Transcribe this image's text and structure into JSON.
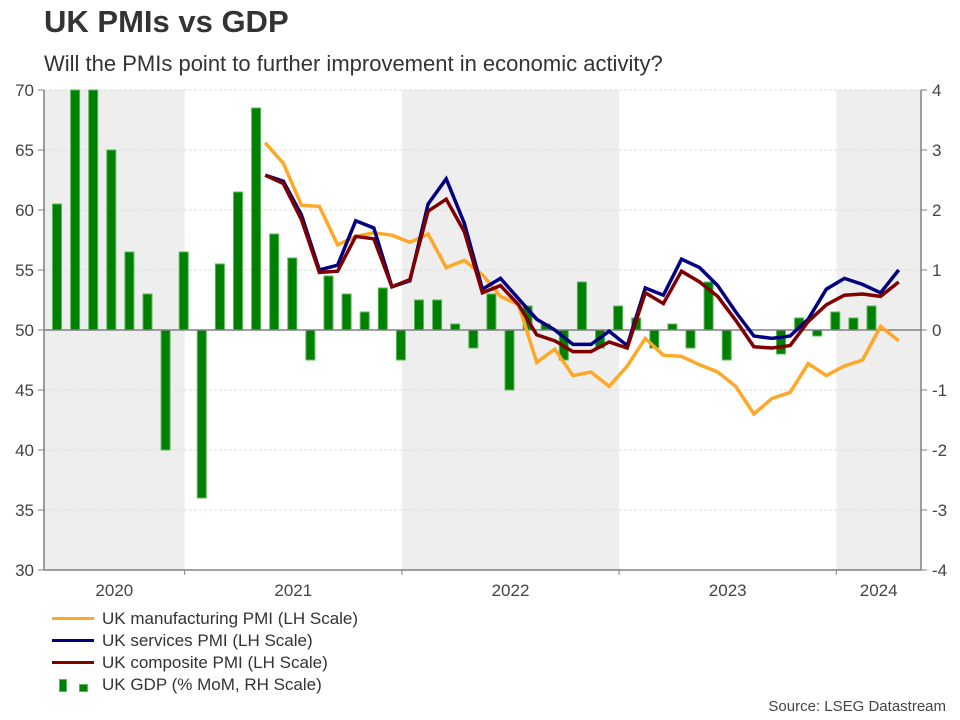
{
  "header": {
    "title": "UK PMIs vs GDP",
    "subtitle": "Will the PMIs point to further improvement in economic activity?"
  },
  "source": "Source: LSEG Datastream",
  "colors": {
    "manufacturing": "#ffa726",
    "services": "#000080",
    "composite": "#800000",
    "gdp": "#008000",
    "gdp_outline": "#5cb85c",
    "shade": "#eeeeee",
    "axis": "#808080",
    "grid": "#dddddd"
  },
  "legend": [
    {
      "key": "manufacturing",
      "label": "UK manufacturing PMI (LH Scale)",
      "type": "line"
    },
    {
      "key": "services",
      "label": "UK services PMI (LH Scale)",
      "type": "line"
    },
    {
      "key": "composite",
      "label": "UK composite PMI (LH Scale)",
      "type": "line"
    },
    {
      "key": "gdp",
      "label": "UK GDP (% MoM, RH Scale)",
      "type": "bar"
    }
  ],
  "chart_data": {
    "type": "bar+line",
    "title": "UK PMIs vs GDP",
    "subtitle": "Will the PMIs point to further improvement in economic activity?",
    "x_start": "2020-05",
    "x_end": "2024-04",
    "x_tick_labels": [
      "2020",
      "2021",
      "2022",
      "2023",
      "2024"
    ],
    "shaded_years": [
      "2020",
      "2022",
      "2024"
    ],
    "left_axis": {
      "label": "LH Scale",
      "min": 30,
      "max": 70,
      "ticks": [
        30,
        35,
        40,
        45,
        50,
        55,
        60,
        65,
        70
      ]
    },
    "right_axis": {
      "label": "RH Scale",
      "min": -4,
      "max": 4,
      "ticks": [
        -4,
        -3,
        -2,
        -1,
        0,
        1,
        2,
        3,
        4
      ]
    },
    "grid": true,
    "legend_position": "bottom-left",
    "bars": {
      "name": "UK GDP (% MoM, RH Scale)",
      "axis": "right",
      "start": "2020-05",
      "note": "Jun-2020 and Jul-2020 exceed axis maximum and are clipped at 4",
      "values": [
        2.1,
        8.7,
        6.6,
        3.0,
        1.3,
        0.6,
        -2.0,
        1.3,
        -2.8,
        1.1,
        2.3,
        3.7,
        1.6,
        1.2,
        -0.5,
        0.9,
        0.6,
        0.3,
        0.7,
        -0.5,
        0.5,
        0.5,
        0.1,
        -0.3,
        0.6,
        -1.0,
        0.4,
        0.1,
        -0.5,
        0.8,
        -0.3,
        0.4,
        0.2,
        -0.3,
        0.1,
        -0.3,
        0.8,
        -0.5,
        0.0,
        0.0,
        -0.4,
        0.2,
        -0.1,
        0.3,
        0.2,
        0.4
      ]
    },
    "series": [
      {
        "name": "UK manufacturing PMI (LH Scale)",
        "key": "manufacturing",
        "axis": "left",
        "start": "2021-05",
        "values": [
          65.6,
          63.9,
          60.4,
          60.3,
          57.1,
          57.8,
          58.1,
          57.9,
          57.3,
          58.0,
          55.2,
          55.8,
          54.6,
          52.8,
          52.1,
          47.3,
          48.4,
          46.2,
          46.5,
          45.3,
          47.0,
          49.3,
          47.9,
          47.8,
          47.1,
          46.5,
          45.3,
          43.0,
          44.3,
          44.8,
          47.2,
          46.2,
          47.0,
          47.5,
          50.3,
          49.1
        ]
      },
      {
        "name": "UK services PMI (LH Scale)",
        "key": "services",
        "axis": "left",
        "start": "2021-05",
        "values": [
          62.9,
          62.4,
          59.6,
          55.0,
          55.4,
          59.1,
          58.5,
          53.6,
          54.1,
          60.5,
          62.6,
          58.9,
          53.4,
          54.3,
          52.6,
          50.9,
          50.0,
          48.8,
          48.8,
          49.9,
          48.7,
          53.5,
          52.9,
          55.9,
          55.2,
          53.7,
          51.5,
          49.5,
          49.3,
          49.5,
          50.9,
          53.4,
          54.3,
          53.8,
          53.1,
          55.0
        ]
      },
      {
        "name": "UK composite PMI (LH Scale)",
        "key": "composite",
        "axis": "left",
        "start": "2021-05",
        "values": [
          62.9,
          62.2,
          59.2,
          54.8,
          54.9,
          57.8,
          57.6,
          53.6,
          54.2,
          59.9,
          60.9,
          58.2,
          53.1,
          53.7,
          52.1,
          49.6,
          49.1,
          48.2,
          48.2,
          49.0,
          48.5,
          53.1,
          52.2,
          54.9,
          54.0,
          52.8,
          50.8,
          48.6,
          48.5,
          48.7,
          50.7,
          52.1,
          52.9,
          53.0,
          52.8,
          54.0
        ]
      }
    ]
  }
}
